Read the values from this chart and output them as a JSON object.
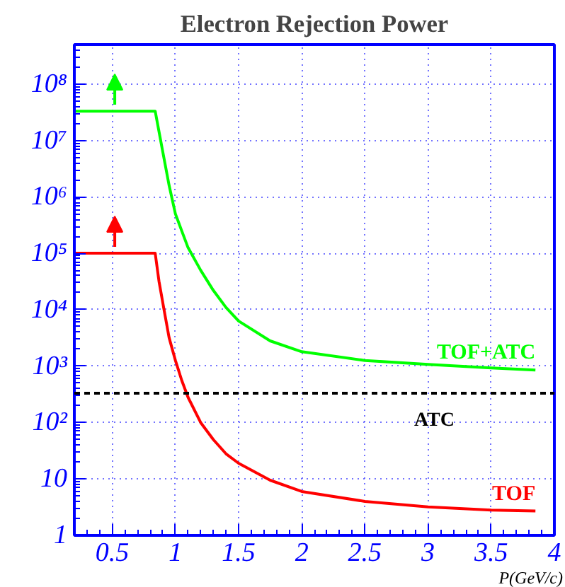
{
  "chart_data": {
    "type": "line",
    "title": "Electron Rejection Power",
    "xlabel": "P(GeV/c)",
    "log": "y",
    "grid": true,
    "legend": false,
    "marker": "none",
    "line_style": "solid",
    "xlim": [
      0.2,
      4
    ],
    "xticks": [
      0.5,
      1,
      1.5,
      2,
      2.5,
      3,
      3.5,
      4
    ],
    "ylim": [
      1,
      500000000
    ],
    "yticks": [
      1,
      10,
      {
        "value": 100,
        "label": "10²"
      },
      {
        "value": 1000,
        "label": "10³"
      },
      {
        "value": 10000,
        "label": "10⁴"
      },
      {
        "value": 100000,
        "label": "10⁵"
      },
      {
        "value": 1000000,
        "label": "10⁶"
      },
      {
        "value": 10000000,
        "label": "10⁷"
      },
      {
        "value": 100000000,
        "label": "10⁸"
      }
    ],
    "series": [
      {
        "name": "TOF+ATC",
        "color": "#00ff00",
        "x": [
          0.2,
          0.84,
          0.9,
          0.95,
          1.0,
          1.05,
          1.1,
          1.2,
          1.3,
          1.4,
          1.5,
          1.75,
          2,
          2.5,
          3,
          3.5,
          3.85
        ],
        "values": [
          33000000,
          33000000,
          6300000,
          1600000,
          500000,
          250000,
          126000,
          50000,
          22000,
          11000,
          6300,
          2800,
          1800,
          1260,
          1070,
          930,
          850
        ]
      },
      {
        "name": "TOF",
        "color": "#ff0000",
        "x": [
          0.2,
          0.84,
          0.87,
          0.91,
          0.95,
          1.0,
          1.05,
          1.1,
          1.2,
          1.3,
          1.4,
          1.5,
          1.75,
          2,
          2.5,
          3,
          3.5,
          3.85
        ],
        "values": [
          100000,
          100000,
          32000,
          10000,
          3200,
          1260,
          560,
          280,
          100,
          50,
          28,
          19,
          9.5,
          6,
          4,
          3.2,
          2.8,
          2.7
        ]
      }
    ],
    "ref_lines": [
      {
        "axis": "y",
        "value": 330,
        "label": "ATC",
        "color": "#000000",
        "line_style": "dashed"
      }
    ]
  }
}
